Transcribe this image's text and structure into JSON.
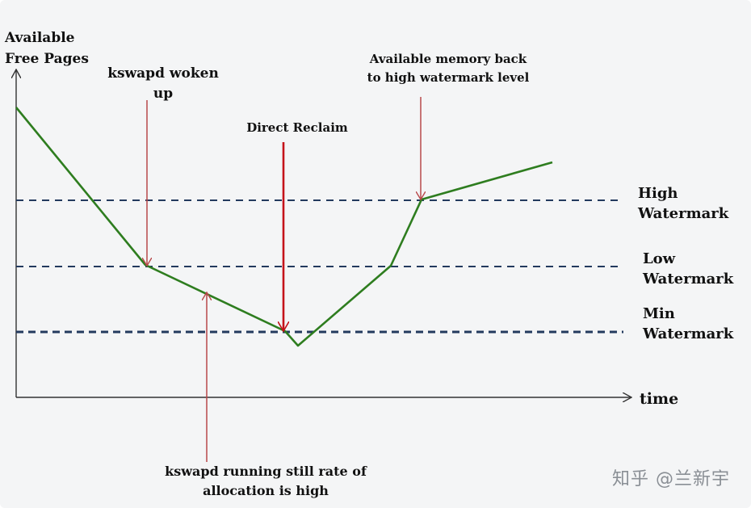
{
  "y_axis_label_line1": "Available",
  "y_axis_label_line2": "Free Pages",
  "x_axis_label": "time",
  "levels": {
    "high": {
      "line1": "High",
      "line2": "Watermark"
    },
    "low": {
      "line1": "Low",
      "line2": "Watermark"
    },
    "min": {
      "line1": "Min",
      "line2": "Watermark"
    }
  },
  "annotations": {
    "kswapd_woken": {
      "line1": "kswapd woken",
      "line2": "up"
    },
    "direct_reclaim": {
      "line1": "Direct Reclaim"
    },
    "back_to_high": {
      "line1": "Available memory back",
      "line2": "to high watermark level"
    },
    "kswapd_running": {
      "line1": "kswapd running still rate of",
      "line2": "allocation is high"
    }
  },
  "watermark_text": "知乎 @兰新宇",
  "colors": {
    "curve": "#2e7d1f",
    "dashed": "#233a5e",
    "arrow_thin": "#b8484a",
    "arrow_thick": "#c4121a",
    "axis": "#333333"
  }
}
